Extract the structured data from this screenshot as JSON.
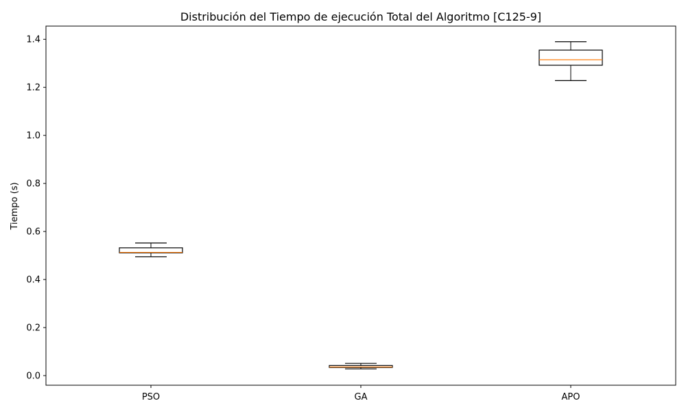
{
  "chart_data": {
    "type": "box",
    "title": "Distribución del Tiempo de ejecución Total del Algoritmo [C125-9]",
    "xlabel": "",
    "ylabel": "Tiempo (s)",
    "ylim": [
      -0.04,
      1.455
    ],
    "yticks": [
      0.0,
      0.2,
      0.4,
      0.6,
      0.8,
      1.0,
      1.2,
      1.4
    ],
    "ytick_labels": [
      "0.0",
      "0.2",
      "0.4",
      "0.6",
      "0.8",
      "1.0",
      "1.2",
      "1.4"
    ],
    "grid": false,
    "categories": [
      "PSO",
      "GA",
      "APO"
    ],
    "boxes": [
      {
        "name": "PSO",
        "whisker_low": 0.495,
        "q1": 0.511,
        "median": 0.513,
        "q3": 0.532,
        "whisker_high": 0.552
      },
      {
        "name": "GA",
        "whisker_low": 0.028,
        "q1": 0.034,
        "median": 0.036,
        "q3": 0.042,
        "whisker_high": 0.051
      },
      {
        "name": "APO",
        "whisker_low": 1.228,
        "q1": 1.292,
        "median": 1.315,
        "q3": 1.355,
        "whisker_high": 1.39
      }
    ],
    "colors": {
      "box": "#000000",
      "median": "#ff7f0e"
    }
  }
}
